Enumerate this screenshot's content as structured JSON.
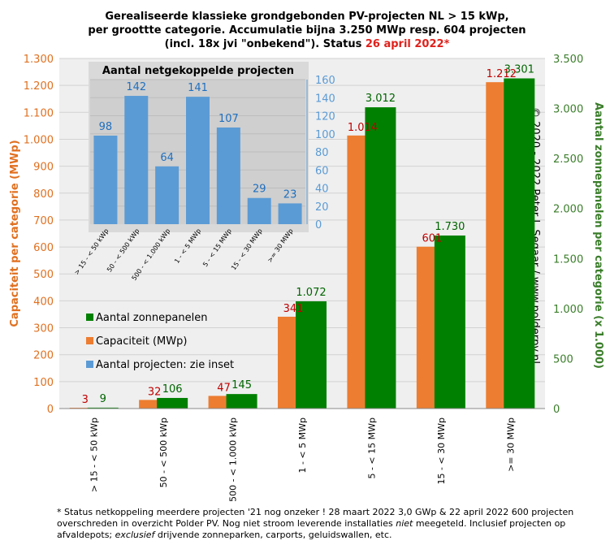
{
  "chart_data": [
    {
      "type": "bar",
      "title_line1": "Gerealiseerde klassieke grondgebonden PV-projecten NL > 15 kWp,",
      "title_line2": "per groottte categorie. Accumulatie bijna 3.250 MWp resp. 604 projecten",
      "title_line3": "(incl. 18x jvi \"onbekend\"). Status ",
      "title_date": "26 april 2022*",
      "title_color": "#000000",
      "title_date_color": "#e0201b",
      "categories": [
        "> 15 - < 50 kWp",
        "50 - < 500 kWp",
        "500 - < 1.000 kWp",
        "1 - < 5 MWp",
        "5 - < 15 MWp",
        "15 - < 30 MWp",
        ">= 30 MWp"
      ],
      "series": [
        {
          "name": "Capaciteit (MWp)",
          "axis": "left",
          "color": "#ed7d31",
          "label_color": "#c00000",
          "values": [
            3,
            32,
            47,
            341,
            1014,
            601,
            1212
          ],
          "labels": [
            "3",
            "32",
            "47",
            "341",
            "1.014",
            "601",
            "1.212"
          ]
        },
        {
          "name": "Aantal zonnepanelen",
          "axis": "right",
          "color": "#008000",
          "label_color": "#006400",
          "values": [
            9,
            106,
            145,
            1072,
            3012,
            1730,
            3301
          ],
          "labels": [
            "9",
            "106",
            "145",
            "1.072",
            "3.012",
            "1.730",
            "3.301"
          ]
        }
      ],
      "ylabel": "Capaciteit per categorie (MWp)",
      "ylabel_color": "#e07020",
      "ylim": [
        0,
        1300
      ],
      "yticks": [
        0,
        100,
        200,
        300,
        400,
        500,
        600,
        700,
        800,
        900,
        1000,
        1100,
        1200,
        1300
      ],
      "yticklabels": [
        "0",
        "100",
        "200",
        "300",
        "400",
        "500",
        "600",
        "700",
        "800",
        "900",
        "1.000",
        "1.100",
        "1.200",
        "1.300"
      ],
      "y2label": "Aantal zonnepanelen per categorie (x 1.000)",
      "y2label_color": "#3a7d2a",
      "y2lim": [
        0,
        3500
      ],
      "y2ticks": [
        0,
        500,
        1000,
        1500,
        2000,
        2500,
        3000,
        3500
      ],
      "y2ticklabels": [
        "0",
        "500",
        "1.000",
        "1.500",
        "2.000",
        "2.500",
        "3.000",
        "3.500"
      ],
      "legend": [
        {
          "label": "Aantal zonnepanelen",
          "color": "#008000"
        },
        {
          "label": "Capaciteit (MWp)",
          "color": "#ed7d31"
        },
        {
          "label": "Aantal projecten: zie inset",
          "color": "#5b9bd5"
        }
      ],
      "legend_position": "center-left",
      "grid": true,
      "copyright": "© 2020 - 2022 Peter J. Segaar / www.polderpv.nl"
    },
    {
      "type": "bar",
      "title": "Aantal netgekoppelde projecten",
      "categories": [
        "> 15 - < 50 kWp",
        "50 - < 500 kWp",
        "500 - < 1.000 kWp",
        "1 - < 5 MWp",
        "5 - < 15 MWp",
        "15 - < 30 MWp",
        ">= 30 MWp"
      ],
      "values": [
        98,
        142,
        64,
        141,
        107,
        29,
        23
      ],
      "color": "#5b9bd5",
      "label_color": "#1f6fbf",
      "ylim": [
        0,
        160
      ],
      "yticks": [
        0,
        20,
        40,
        60,
        80,
        100,
        120,
        140,
        160
      ],
      "grid": true,
      "position": "inset-top-left"
    }
  ],
  "footnote": {
    "line1": "* Status netkoppeling meerdere projecten '21 nog onzeker ! 28 maart 2022 3,0 GWp & 22 april 2022 600 projecten",
    "line2_a": "overschreden in overzicht Polder PV. Nog niet stroom leverende installaties ",
    "line2_em": "niet",
    "line2_b": " meegeteld. Inclusief projecten op",
    "line3_a": "afvaldepots; ",
    "line3_em": "exclusief",
    "line3_b": " drijvende zonneparken, carports, geluidswallen, etc."
  }
}
